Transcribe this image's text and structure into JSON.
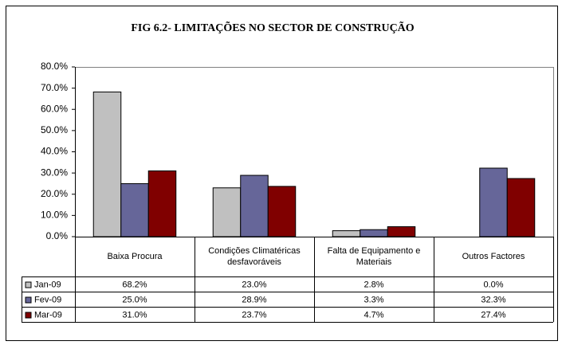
{
  "chart_data": {
    "type": "bar",
    "title": "FIG 6.2- LIMITAÇÕES  NO SECTOR DE CONSTRUÇÃO",
    "categories": [
      "Baixa Procura",
      "Condições Climatéricas desfavoráveis",
      "Falta de Equipamento e Materiais",
      "Outros Factores"
    ],
    "series": [
      {
        "name": "Jan-09",
        "color": "#c0c0c0",
        "values": [
          68.2,
          23.0,
          2.8,
          0.0
        ],
        "value_labels": [
          "68.2%",
          "23.0%",
          "2.8%",
          "0.0%"
        ]
      },
      {
        "name": "Fev-09",
        "color": "#666699",
        "values": [
          25.0,
          28.9,
          3.3,
          32.3
        ],
        "value_labels": [
          "25.0%",
          "28.9%",
          "3.3%",
          "32.3%"
        ]
      },
      {
        "name": "Mar-09",
        "color": "#800000",
        "values": [
          31.0,
          23.7,
          4.7,
          27.4
        ],
        "value_labels": [
          "31.0%",
          "23.7%",
          "4.7%",
          "27.4%"
        ]
      }
    ],
    "ylim": [
      0,
      80
    ],
    "yticks": [
      {
        "value": 0,
        "label": "0.0%"
      },
      {
        "value": 10,
        "label": "10.0%"
      },
      {
        "value": 20,
        "label": "20.0%"
      },
      {
        "value": 30,
        "label": "30.0%"
      },
      {
        "value": 40,
        "label": "40.0%"
      },
      {
        "value": 50,
        "label": "50.0%"
      },
      {
        "value": 60,
        "label": "60.0%"
      },
      {
        "value": 70,
        "label": "70.0%"
      },
      {
        "value": 80,
        "label": "80.0%"
      }
    ],
    "grid": false
  }
}
